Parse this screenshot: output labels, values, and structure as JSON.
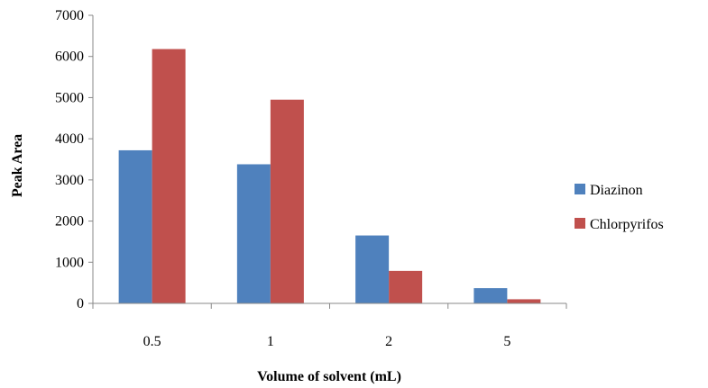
{
  "chart_data": {
    "type": "bar",
    "title": "",
    "xlabel": "Volume of solvent (mL)",
    "ylabel": "Peak Area",
    "categories": [
      "0.5",
      "1",
      "2",
      "5"
    ],
    "ylim": [
      0,
      7000
    ],
    "yticks": [
      "0",
      "1000",
      "2000",
      "3000",
      "4000",
      "5000",
      "6000",
      "7000"
    ],
    "grid": false,
    "legend_position": "right",
    "series": [
      {
        "name": "Diazinon",
        "color": "#4F81BD",
        "values": [
          3720,
          3380,
          1650,
          370
        ]
      },
      {
        "name": "Chlorpyrifos",
        "color": "#C0504D",
        "values": [
          6180,
          4950,
          790,
          100
        ]
      }
    ]
  }
}
